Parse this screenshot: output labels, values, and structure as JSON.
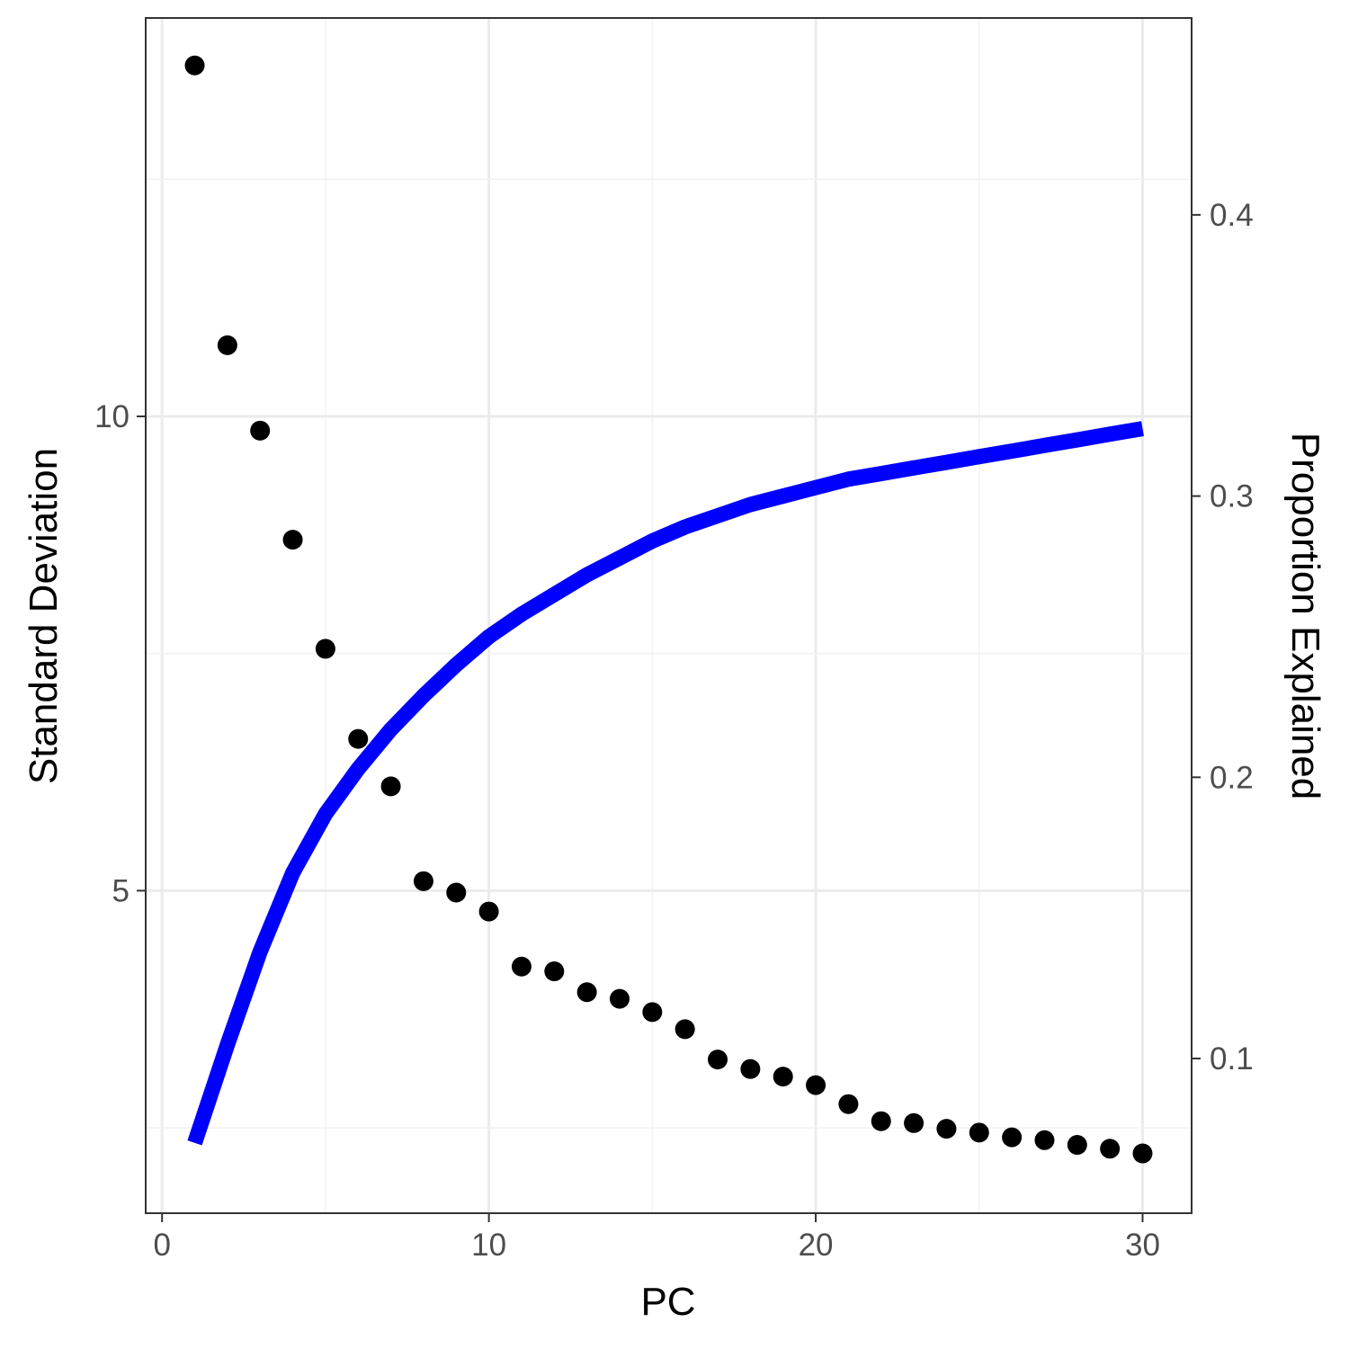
{
  "chart_data": {
    "type": "scatter+line",
    "xlabel": "PC",
    "ylabel": "Standard Deviation",
    "y2label": "Proportion Explained",
    "y2label_color": "#0000ff",
    "line_color": "#0000ff",
    "point_color": "#000000",
    "background": "#ffffff",
    "grid": true,
    "xlim": [
      -0.5,
      31.5
    ],
    "ylim": [
      1.6,
      14.2
    ],
    "y2lim": [
      0.045,
      0.47
    ],
    "x_ticks": [
      0,
      10,
      20,
      30
    ],
    "x_tick_labels": [
      "0",
      "10",
      "20",
      "30"
    ],
    "y_ticks": [
      5,
      10
    ],
    "y_tick_labels": [
      "5",
      "10"
    ],
    "y2_ticks": [
      0.1,
      0.2,
      0.3,
      0.4
    ],
    "y2_tick_labels": [
      "0.1",
      "0.2",
      "0.3",
      "0.4"
    ],
    "series": [
      {
        "type": "scatter",
        "axis": "left",
        "x": [
          1,
          2,
          3,
          4,
          5,
          6,
          7,
          8,
          9,
          10,
          11,
          12,
          13,
          14,
          15,
          16,
          17,
          18,
          19,
          20,
          21,
          22,
          23,
          24,
          25,
          26,
          27,
          28,
          29,
          30
        ],
        "values": [
          13.7,
          10.75,
          9.85,
          8.7,
          7.55,
          6.6,
          6.1,
          5.1,
          4.98,
          4.78,
          4.2,
          4.15,
          3.93,
          3.86,
          3.72,
          3.54,
          3.22,
          3.12,
          3.04,
          2.95,
          2.75,
          2.57,
          2.55,
          2.49,
          2.45,
          2.4,
          2.37,
          2.32,
          2.28,
          2.23
        ]
      },
      {
        "type": "line",
        "axis": "right",
        "x": [
          1,
          2,
          3,
          4,
          5,
          6,
          7,
          8,
          9,
          10,
          11,
          12,
          13,
          14,
          15,
          16,
          17,
          18,
          19,
          20,
          21,
          22,
          23,
          24,
          25,
          26,
          27,
          28,
          29,
          30
        ],
        "values": [
          0.07,
          0.105,
          0.138,
          0.166,
          0.187,
          0.203,
          0.217,
          0.229,
          0.24,
          0.25,
          0.258,
          0.265,
          0.272,
          0.278,
          0.284,
          0.289,
          0.293,
          0.297,
          0.3,
          0.303,
          0.306,
          0.308,
          0.31,
          0.312,
          0.314,
          0.316,
          0.318,
          0.32,
          0.322,
          0.324
        ]
      }
    ]
  }
}
